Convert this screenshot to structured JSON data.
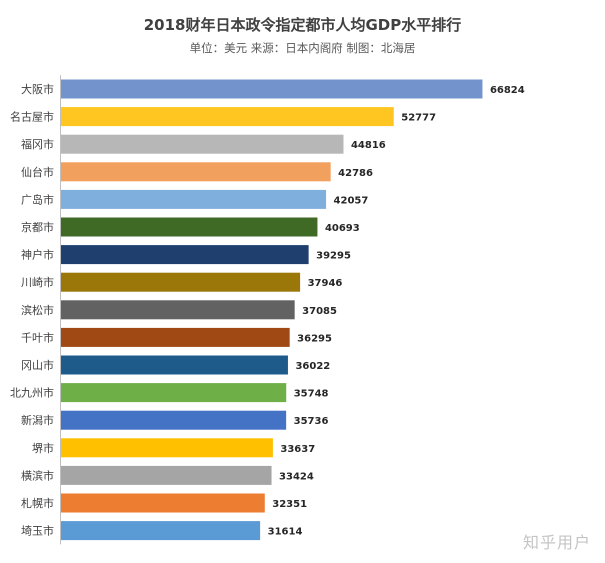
{
  "title": "2018财年日本政令指定都市人均GDP水平排行",
  "subtitle": "单位：美元 来源：日本内阁府 制图：北海居",
  "watermark": "知乎用户",
  "chart_data": {
    "type": "bar",
    "orientation": "horizontal",
    "categories": [
      "大阪市",
      "名古屋市",
      "福冈市",
      "仙台市",
      "广岛市",
      "京都市",
      "神户市",
      "川崎市",
      "滨松市",
      "千叶市",
      "冈山市",
      "北九州市",
      "新潟市",
      "堺市",
      "横滨市",
      "札幌市",
      "埼玉市"
    ],
    "values": [
      66824,
      52777,
      44816,
      42786,
      42057,
      40693,
      39295,
      37946,
      37085,
      36295,
      36022,
      35748,
      35736,
      33637,
      33424,
      32351,
      31614
    ],
    "colors": [
      "#7293CB",
      "#FFC521",
      "#B7B7B7",
      "#F2A05E",
      "#7FAFDC",
      "#3F6A26",
      "#1F3F6E",
      "#9B770A",
      "#626262",
      "#A04915",
      "#1F5B8A",
      "#6FAF48",
      "#4472C4",
      "#FFC000",
      "#A5A5A5",
      "#ED7D31",
      "#5B9BD5"
    ],
    "xlim": [
      0,
      70000
    ],
    "xlabel": "",
    "ylabel": "",
    "grid": false,
    "legend": "none"
  }
}
